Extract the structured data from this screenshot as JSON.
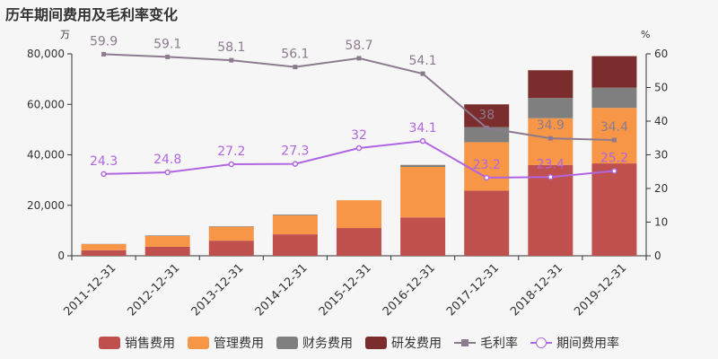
{
  "title": "历年期间费用及毛利率变化",
  "left_unit": "万",
  "right_unit": "%",
  "colors": {
    "sales": "#c0504d",
    "admin": "#f79646",
    "finance": "#7f7f7f",
    "rnd": "#7b2c2c",
    "gross": "#8c7b8f",
    "period": "#b066e0"
  },
  "chart_data": {
    "type": "bar",
    "stacked": true,
    "categories": [
      "2011-12-31",
      "2012-12-31",
      "2013-12-31",
      "2014-12-31",
      "2015-12-31",
      "2016-12-31",
      "2017-12-31",
      "2018-12-31",
      "2019-12-31"
    ],
    "series": [
      {
        "name": "销售费用",
        "key": "sales",
        "values": [
          2200,
          3600,
          6000,
          8500,
          11000,
          15200,
          25800,
          36000,
          36600
        ]
      },
      {
        "name": "管理费用",
        "key": "admin",
        "values": [
          2400,
          4300,
          5500,
          7500,
          11000,
          20000,
          19200,
          18500,
          22000
        ]
      },
      {
        "name": "财务费用",
        "key": "finance",
        "values": [
          100,
          200,
          200,
          300,
          0,
          800,
          6000,
          8000,
          8000
        ]
      },
      {
        "name": "研发费用",
        "key": "rnd",
        "values": [
          0,
          0,
          0,
          0,
          0,
          0,
          9000,
          11000,
          12500
        ]
      }
    ],
    "lines": [
      {
        "name": "毛利率",
        "key": "gross",
        "axis": "right",
        "marker": "square",
        "values": [
          59.9,
          59.1,
          58.1,
          56.1,
          58.7,
          54.1,
          38,
          34.9,
          34.4
        ],
        "labels": [
          "59.9",
          "59.1",
          "58.1",
          "56.1",
          "58.7",
          "54.1",
          "38",
          "34.9",
          "34.4"
        ]
      },
      {
        "name": "期间费用率",
        "key": "period",
        "axis": "right",
        "marker": "circle",
        "values": [
          24.3,
          24.8,
          27.2,
          27.3,
          32,
          34.1,
          23.2,
          23.4,
          25.2
        ],
        "labels": [
          "24.3",
          "24.8",
          "27.2",
          "27.3",
          "32",
          "34.1",
          "23.2",
          "23.4",
          "25.2"
        ]
      }
    ],
    "ylim_left": [
      0,
      80000
    ],
    "yticks_left": [
      "0",
      "20,000",
      "40,000",
      "60,000",
      "80,000"
    ],
    "ylim_right": [
      0,
      60
    ],
    "yticks_right": [
      "0",
      "10",
      "20",
      "30",
      "40",
      "50",
      "60"
    ],
    "legend_position": "bottom"
  }
}
